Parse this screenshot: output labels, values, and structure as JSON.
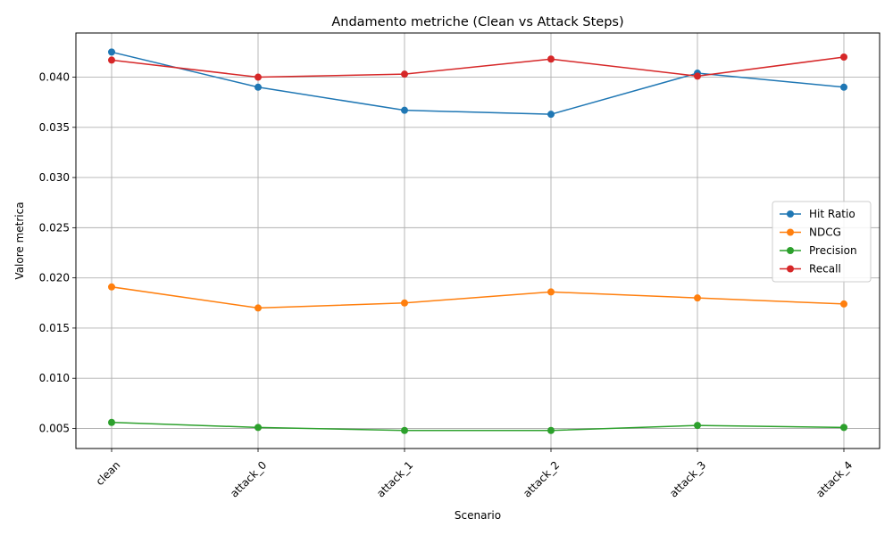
{
  "chart_data": {
    "type": "line",
    "title": "Andamento metriche (Clean vs Attack Steps)",
    "xlabel": "Scenario",
    "ylabel": "Valore metrica",
    "categories": [
      "clean",
      "attack_0",
      "attack_1",
      "attack_2",
      "attack_3",
      "attack_4"
    ],
    "ylim": [
      0.003,
      0.0444
    ],
    "yticks": [
      0.005,
      0.01,
      0.015,
      0.02,
      0.025,
      0.03,
      0.035,
      0.04
    ],
    "ytick_labels": [
      "0.005",
      "0.010",
      "0.015",
      "0.020",
      "0.025",
      "0.030",
      "0.035",
      "0.040"
    ],
    "grid": true,
    "legend_position": "center-right",
    "series": [
      {
        "name": "Hit Ratio",
        "color": "#1f77b4",
        "values": [
          0.0425,
          0.039,
          0.0367,
          0.0363,
          0.0404,
          0.039
        ]
      },
      {
        "name": "NDCG",
        "color": "#ff7f0e",
        "values": [
          0.0191,
          0.017,
          0.0175,
          0.0186,
          0.018,
          0.0174
        ]
      },
      {
        "name": "Precision",
        "color": "#2ca02c",
        "values": [
          0.0056,
          0.0051,
          0.0048,
          0.0048,
          0.0053,
          0.0051
        ]
      },
      {
        "name": "Recall",
        "color": "#d62728",
        "values": [
          0.0417,
          0.04,
          0.0403,
          0.0418,
          0.0401,
          0.042
        ]
      }
    ]
  }
}
